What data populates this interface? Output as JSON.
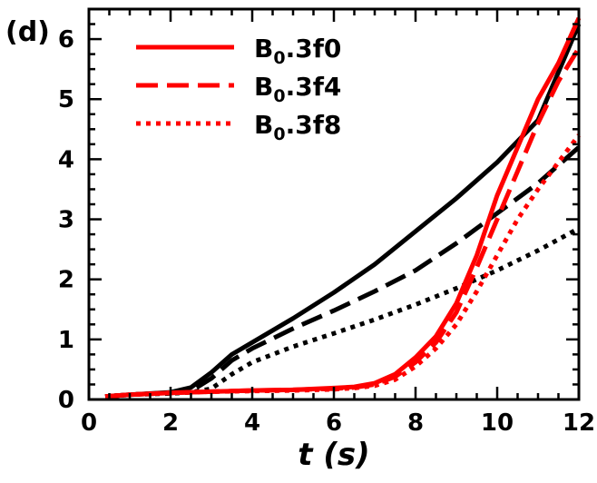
{
  "chart_data": {
    "type": "line",
    "panel_label": "(d)",
    "xlabel": "t (s)",
    "ylabel": "",
    "xlim": [
      0,
      12
    ],
    "ylim": [
      0,
      6.5
    ],
    "xticks": [
      0,
      2,
      4,
      6,
      8,
      10,
      12
    ],
    "yticks": [
      0,
      1,
      2,
      3,
      4,
      5,
      6
    ],
    "grid": false,
    "legend_position": "top-left",
    "colors": {
      "red": "#ff0000",
      "black": "#000000"
    },
    "series": [
      {
        "name": "B0.3f0",
        "legend_base": "B",
        "legend_sub": "0",
        "legend_rest": ".3f0",
        "color": "#ff0000",
        "dash": "solid",
        "x": [
          0.4,
          1,
          2,
          3,
          4,
          5,
          6,
          6.5,
          7,
          7.5,
          8,
          8.5,
          9,
          9.5,
          10,
          10.5,
          11,
          11.5,
          12
        ],
        "y": [
          0.05,
          0.08,
          0.11,
          0.13,
          0.15,
          0.16,
          0.19,
          0.21,
          0.27,
          0.42,
          0.7,
          1.05,
          1.6,
          2.4,
          3.4,
          4.2,
          5.0,
          5.6,
          6.35
        ]
      },
      {
        "name": "B0.3f4",
        "legend_base": "B",
        "legend_sub": "0",
        "legend_rest": ".3f4",
        "color": "#ff0000",
        "dash": "dashed",
        "x": [
          0.4,
          1,
          2,
          3,
          4,
          5,
          6,
          6.5,
          7,
          7.5,
          8,
          8.5,
          9,
          9.5,
          10,
          10.5,
          11,
          11.5,
          12
        ],
        "y": [
          0.05,
          0.08,
          0.11,
          0.13,
          0.15,
          0.16,
          0.18,
          0.2,
          0.25,
          0.38,
          0.62,
          0.95,
          1.45,
          2.2,
          3.0,
          3.8,
          4.6,
          5.3,
          5.85
        ]
      },
      {
        "name": "B0.3f8",
        "legend_base": "B",
        "legend_sub": "0",
        "legend_rest": ".3f8",
        "color": "#ff0000",
        "dash": "dotted",
        "x": [
          0.4,
          1,
          2,
          3,
          4,
          5,
          6,
          6.5,
          7,
          7.5,
          8,
          8.5,
          9,
          9.5,
          10,
          10.5,
          11,
          11.5,
          12
        ],
        "y": [
          0.05,
          0.08,
          0.11,
          0.13,
          0.14,
          0.15,
          0.17,
          0.19,
          0.23,
          0.33,
          0.55,
          0.85,
          1.25,
          1.8,
          2.4,
          3.0,
          3.5,
          3.95,
          4.4
        ]
      },
      {
        "color": "#000000",
        "dash": "solid",
        "x": [
          0.4,
          1,
          2,
          2.5,
          3,
          3.5,
          4,
          5,
          6,
          7,
          8,
          9,
          10,
          11,
          12
        ],
        "y": [
          0.05,
          0.08,
          0.12,
          0.2,
          0.45,
          0.75,
          0.95,
          1.35,
          1.78,
          2.25,
          2.8,
          3.35,
          3.95,
          4.65,
          6.25
        ]
      },
      {
        "color": "#000000",
        "dash": "dashed",
        "x": [
          0.4,
          1,
          2,
          2.5,
          3,
          3.5,
          4,
          5,
          6,
          7,
          8,
          9,
          10,
          11,
          12
        ],
        "y": [
          0.05,
          0.08,
          0.11,
          0.14,
          0.35,
          0.65,
          0.85,
          1.18,
          1.48,
          1.8,
          2.15,
          2.6,
          3.1,
          3.6,
          4.2
        ]
      },
      {
        "color": "#000000",
        "dash": "dotted",
        "x": [
          0.4,
          1,
          2,
          2.5,
          3,
          3.5,
          4,
          5,
          6,
          7,
          8,
          9,
          10,
          11,
          12
        ],
        "y": [
          0.05,
          0.08,
          0.1,
          0.12,
          0.18,
          0.42,
          0.62,
          0.88,
          1.1,
          1.33,
          1.58,
          1.85,
          2.15,
          2.48,
          2.85
        ]
      }
    ]
  }
}
